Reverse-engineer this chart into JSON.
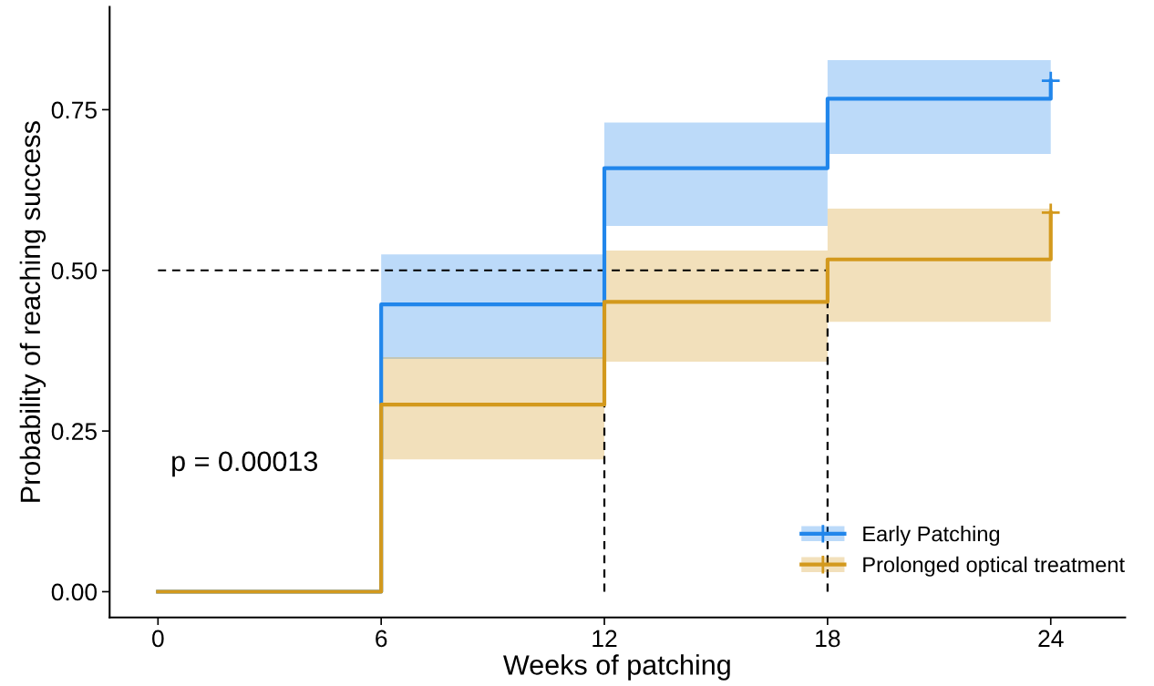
{
  "chart_data": {
    "type": "step",
    "xlabel": "Weeks of patching",
    "ylabel": "Probability of reaching success",
    "xlim": [
      -1.3,
      26
    ],
    "ylim": [
      -0.04,
      0.91
    ],
    "xticks": [
      0,
      6,
      12,
      18,
      24
    ],
    "yticks": [
      {
        "value": 0,
        "label": "0.00"
      },
      {
        "value": 0.25,
        "label": "0.25"
      },
      {
        "value": 0.5,
        "label": "0.50"
      },
      {
        "value": 0.75,
        "label": "0.75"
      }
    ],
    "grid": false,
    "legend": "bottom right",
    "annotations": [
      "p = 0.00013"
    ],
    "series": [
      {
        "name": "Early Patching",
        "color": "#2186eb",
        "x": [
          0,
          6,
          12,
          18,
          24
        ],
        "values": [
          0,
          0.447,
          0.659,
          0.767,
          0.795
        ],
        "lower": [
          null,
          0.362,
          0.569,
          0.681,
          0.681
        ],
        "upper": [
          null,
          0.525,
          0.73,
          0.827,
          0.827
        ]
      },
      {
        "name": "Prolonged optical treatment",
        "color": "#d3991d",
        "x": [
          0,
          6,
          12,
          18,
          24
        ],
        "values": [
          0,
          0.291,
          0.451,
          0.517,
          0.59
        ],
        "lower": [
          null,
          0.206,
          0.358,
          0.42,
          0.42
        ],
        "upper": [
          null,
          0.365,
          0.531,
          0.596,
          0.596
        ]
      },
      {
        "type": "scatter",
        "color": "#2186eb",
        "marker": "cross",
        "x": [
          24
        ],
        "values": [
          0.795
        ]
      },
      {
        "type": "scatter",
        "color": "#d3991d",
        "marker": "cross",
        "x": [
          24
        ],
        "values": [
          0.59
        ]
      },
      {
        "type": "line",
        "color": "#000000",
        "line_style": "dashed",
        "x": [
          0,
          18
        ],
        "values": [
          0.5,
          0.5
        ]
      },
      {
        "type": "line",
        "color": "#000000",
        "line_style": "dashed",
        "x": [
          12,
          12
        ],
        "values": [
          0,
          0.5
        ]
      },
      {
        "type": "line",
        "color": "#000000",
        "line_style": "dashed",
        "x": [
          18,
          18
        ],
        "values": [
          0,
          0.5
        ]
      }
    ]
  }
}
